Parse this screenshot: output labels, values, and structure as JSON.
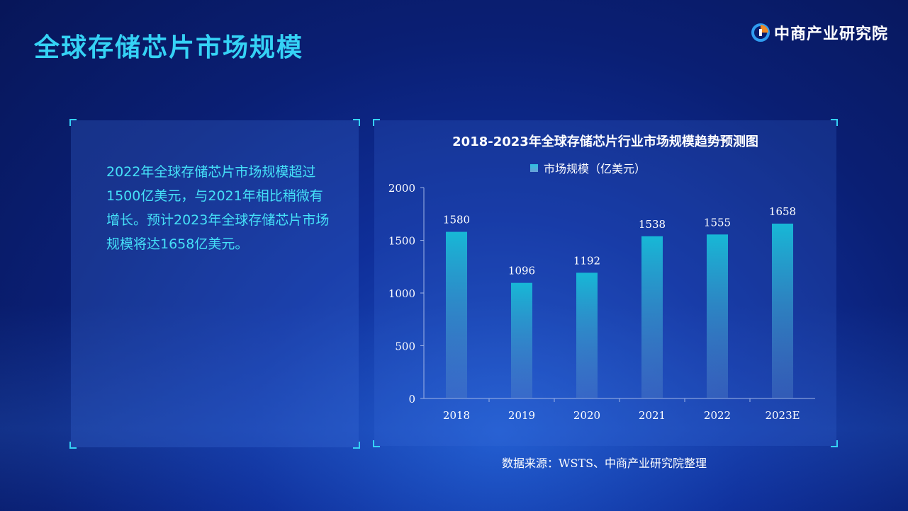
{
  "header": {
    "title": "全球存储芯片市场规模",
    "logo_text": "中商产业研究院"
  },
  "summary": {
    "text": "2022年全球存储芯片市场规模超过1500亿美元，与2021年相比稍微有增长。预计2023年全球存储芯片市场规模将达1658亿美元。"
  },
  "source": "数据来源：WSTS、中商产业研究院整理",
  "chart_data": {
    "type": "bar",
    "title": "2018-2023年全球存储芯片行业市场规模趋势预测图",
    "categories": [
      "2018",
      "2019",
      "2020",
      "2021",
      "2022",
      "2023E"
    ],
    "series": [
      {
        "name": "市场规模（亿美元）",
        "values": [
          1580,
          1096,
          1192,
          1538,
          1555,
          1658
        ]
      }
    ],
    "xlabel": "",
    "ylabel": "",
    "ylim": [
      0,
      2000
    ],
    "yticks": [
      0,
      500,
      1000,
      1500,
      2000
    ],
    "grid": false,
    "legend": "top",
    "data_labels": true,
    "colors": {
      "bar_top": "#17b8d6",
      "bar_bottom": "#5a86c8",
      "axis": "#9fb4e6",
      "title": "#35d2f5"
    }
  }
}
